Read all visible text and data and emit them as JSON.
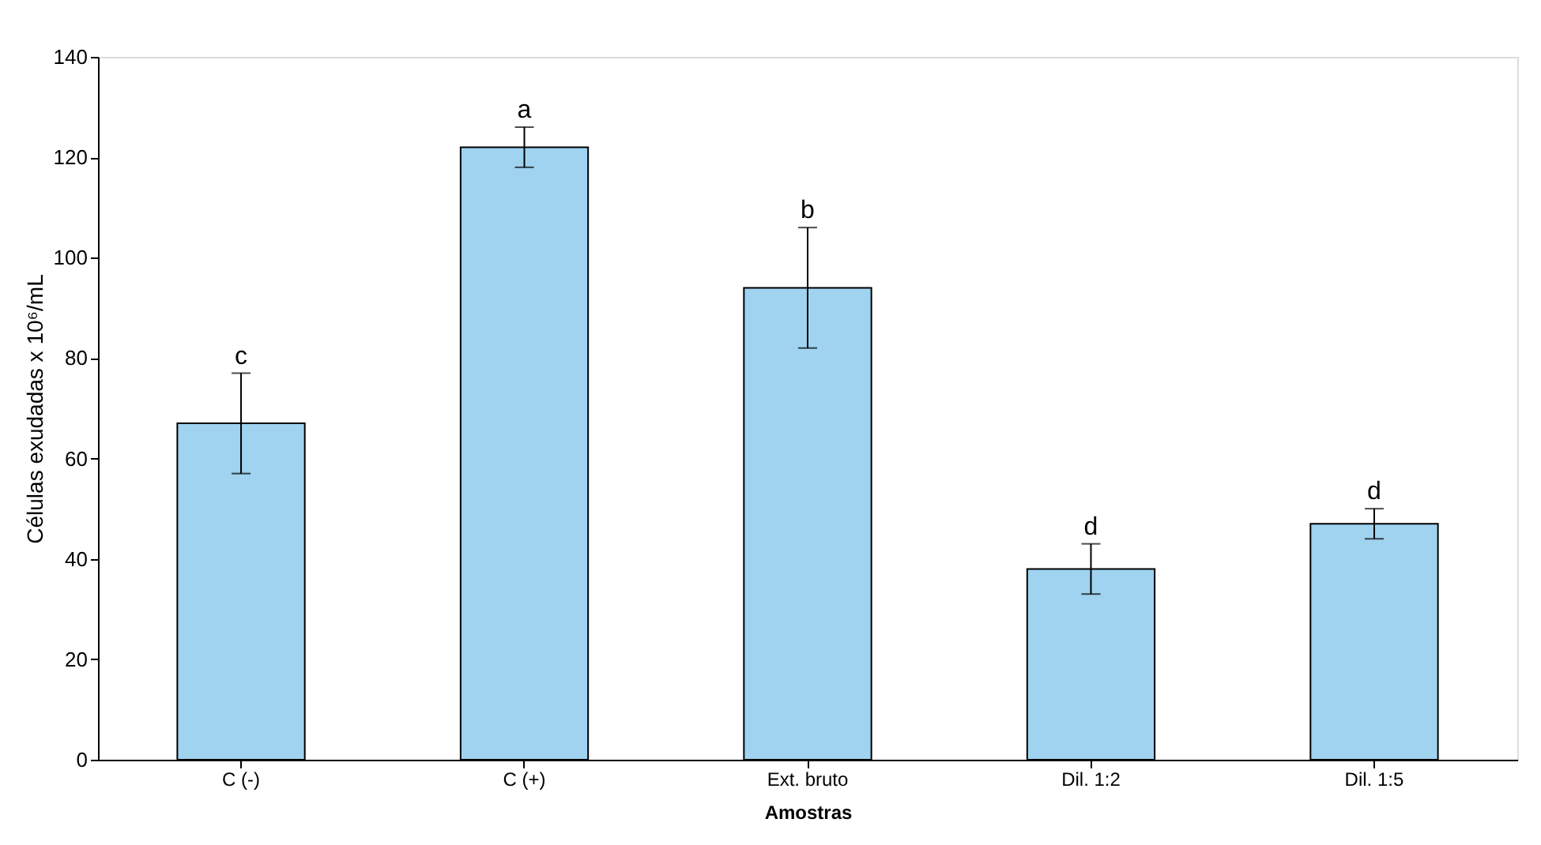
{
  "chart_data": {
    "type": "bar",
    "xlabel": "Amostras",
    "ylabel": "Células exudadas x 10⁶/mL",
    "categories": [
      "C (-)",
      "C (+)",
      "Ext. bruto",
      "Dil. 1:2",
      "Dil. 1:5"
    ],
    "values": [
      67,
      122,
      94,
      38,
      47
    ],
    "errors": [
      10,
      4,
      12,
      5,
      3
    ],
    "color": "#9fd3f0",
    "ylim": [
      0,
      140
    ],
    "yticks": [
      0,
      20,
      40,
      60,
      80,
      100,
      120,
      140
    ],
    "grid": false,
    "annotations": [
      {
        "text": "c",
        "x": "C (-)",
        "y": 77
      },
      {
        "text": "a",
        "x": "C (+)",
        "y": 126
      },
      {
        "text": "b",
        "x": "Ext. bruto",
        "y": 106
      },
      {
        "text": "d",
        "x": "Dil. 1:2",
        "y": 43
      },
      {
        "text": "d",
        "x": "Dil. 1:5",
        "y": 50
      }
    ]
  }
}
